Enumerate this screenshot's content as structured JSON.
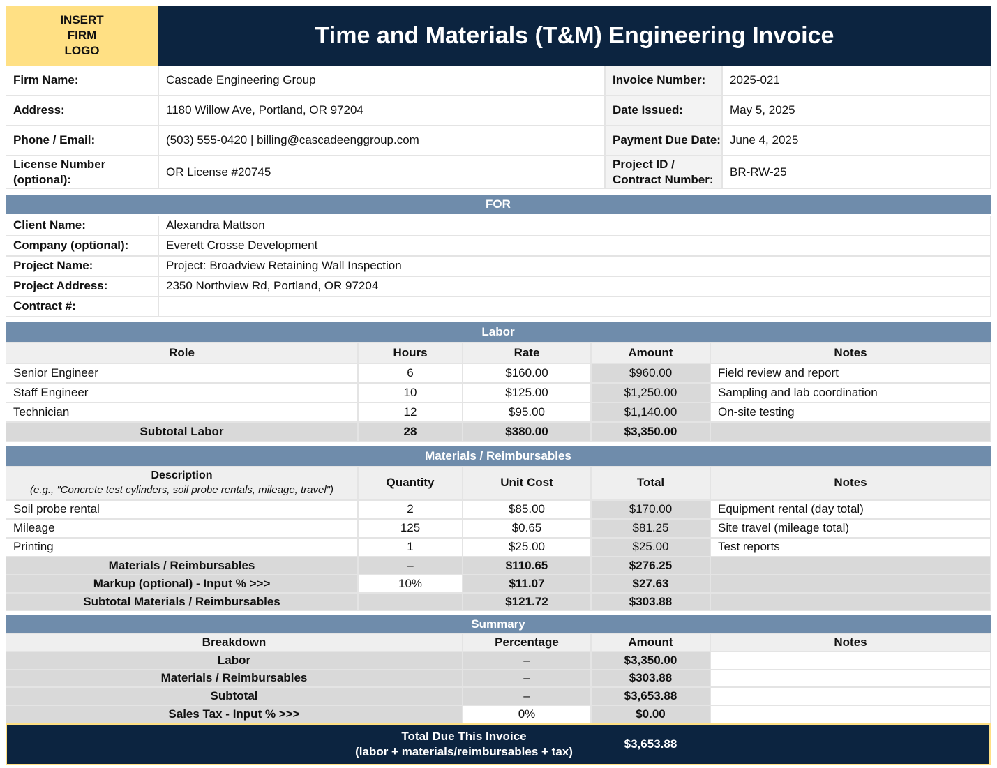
{
  "header": {
    "logo": "INSERT\nFIRM\nLOGO",
    "title": "Time and Materials (T&M) Engineering Invoice"
  },
  "firm_info": [
    {
      "label": "Firm Name:",
      "value": "Cascade Engineering Group"
    },
    {
      "label": "Address:",
      "value": "1180 Willow Ave, Portland, OR 97204"
    },
    {
      "label": "Phone / Email:",
      "value": "(503) 555-0420 | billing@cascadeenggroup.com"
    },
    {
      "label": "License Number (optional):",
      "value": "OR License #20745"
    }
  ],
  "invoice_info": [
    {
      "label": "Invoice Number:",
      "value": "2025-021"
    },
    {
      "label": "Date Issued:",
      "value": "May 5, 2025"
    },
    {
      "label": "Payment Due Date:",
      "value": "June 4, 2025"
    },
    {
      "label": "Project ID /\nContract Number:",
      "value": "BR-RW-25"
    }
  ],
  "client": {
    "title": "FOR",
    "rows": [
      {
        "label": "Client Name:",
        "value": "Alexandra Mattson"
      },
      {
        "label": "Company (optional):",
        "value": "Everett Crosse Development"
      },
      {
        "label": "Project Name:",
        "value": "Project: Broadview Retaining Wall Inspection"
      },
      {
        "label": "Project Address:",
        "value": "2350 Northview Rd, Portland, OR 97204"
      },
      {
        "label": "Contract #:"
      }
    ]
  },
  "labor": {
    "title": "Labor",
    "columns": [
      "Role",
      "Hours",
      "Rate",
      "Amount",
      "Notes"
    ],
    "rows": [
      [
        "Senior Engineer",
        "6",
        "$160.00",
        "$960.00",
        "Field review and report"
      ],
      [
        "Staff Engineer",
        "10",
        "$125.00",
        "$1,250.00",
        "Sampling and lab coordination"
      ],
      [
        "Technician",
        "12",
        "$95.00",
        "$1,140.00",
        "On-site testing"
      ]
    ],
    "subtotal": [
      "Subtotal Labor",
      "28",
      "$380.00",
      "$3,350.00"
    ]
  },
  "materials": {
    "title": "Materials / Reimbursables",
    "columns": [
      "Description",
      "Quantity",
      "Unit Cost",
      "Total",
      "Notes"
    ],
    "hint": "(e.g., \"Concrete test cylinders, soil probe rentals, mileage, travel\")",
    "rows": [
      [
        "Soil probe rental",
        "2",
        "$85.00",
        "$170.00",
        "Equipment rental (day total)"
      ],
      [
        "Mileage",
        "125",
        "$0.65",
        "$81.25",
        "Site travel (mileage total)"
      ],
      [
        "Printing",
        "1",
        "$25.00",
        "$25.00",
        "Test reports"
      ]
    ],
    "totals": [
      {
        "label": "Materials / Reimbursables",
        "quantity": "–",
        "unit_cost": "$110.65",
        "total": "$276.25"
      },
      {
        "label": "Markup (optional) - Input % >>>",
        "quantity": "10%",
        "unit_cost": "$11.07",
        "total": "$27.63"
      },
      {
        "label": "Subtotal Materials / Reimbursables",
        "unit_cost": "$121.72",
        "total": "$303.88"
      }
    ]
  },
  "summary": {
    "title": "Summary",
    "columns": [
      "Breakdown",
      "Percentage",
      "Amount",
      "Notes"
    ],
    "rows": [
      [
        "Labor",
        "–",
        "$3,350.00"
      ],
      [
        "Materials / Reimbursables",
        "–",
        "$303.88"
      ],
      [
        "Subtotal",
        "–",
        "$3,653.88"
      ],
      [
        "Sales Tax - Input % >>>",
        "0%",
        "$0.00"
      ]
    ],
    "total": {
      "label": "Total Due This Invoice\n(labor + materials/reimbursables + tax)",
      "value": "$3,653.88"
    }
  }
}
